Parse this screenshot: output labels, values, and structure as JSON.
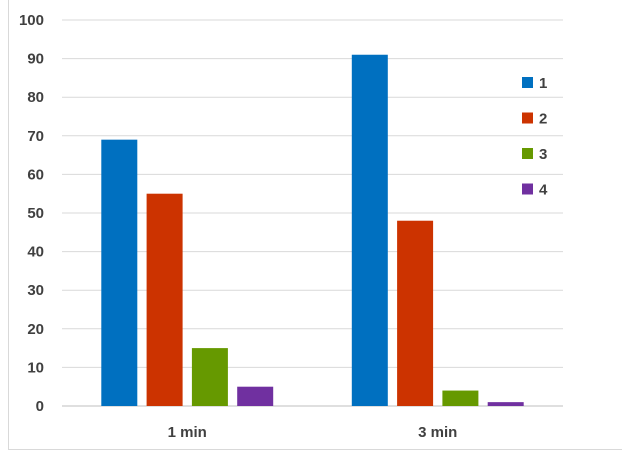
{
  "chart_data": {
    "type": "bar",
    "categories": [
      "1 min",
      "3 min"
    ],
    "series": [
      {
        "name": "1",
        "values": [
          69,
          91
        ],
        "color": "#0070C0"
      },
      {
        "name": "2",
        "values": [
          55,
          48
        ],
        "color": "#CC3300"
      },
      {
        "name": "3",
        "values": [
          15,
          4
        ],
        "color": "#669900"
      },
      {
        "name": "4",
        "values": [
          5,
          1
        ],
        "color": "#7030A0"
      }
    ],
    "ylim": [
      0,
      100
    ],
    "yticks": [
      0,
      10,
      20,
      30,
      40,
      50,
      60,
      70,
      80,
      90,
      100
    ],
    "grid": true,
    "legend_position": "right"
  }
}
